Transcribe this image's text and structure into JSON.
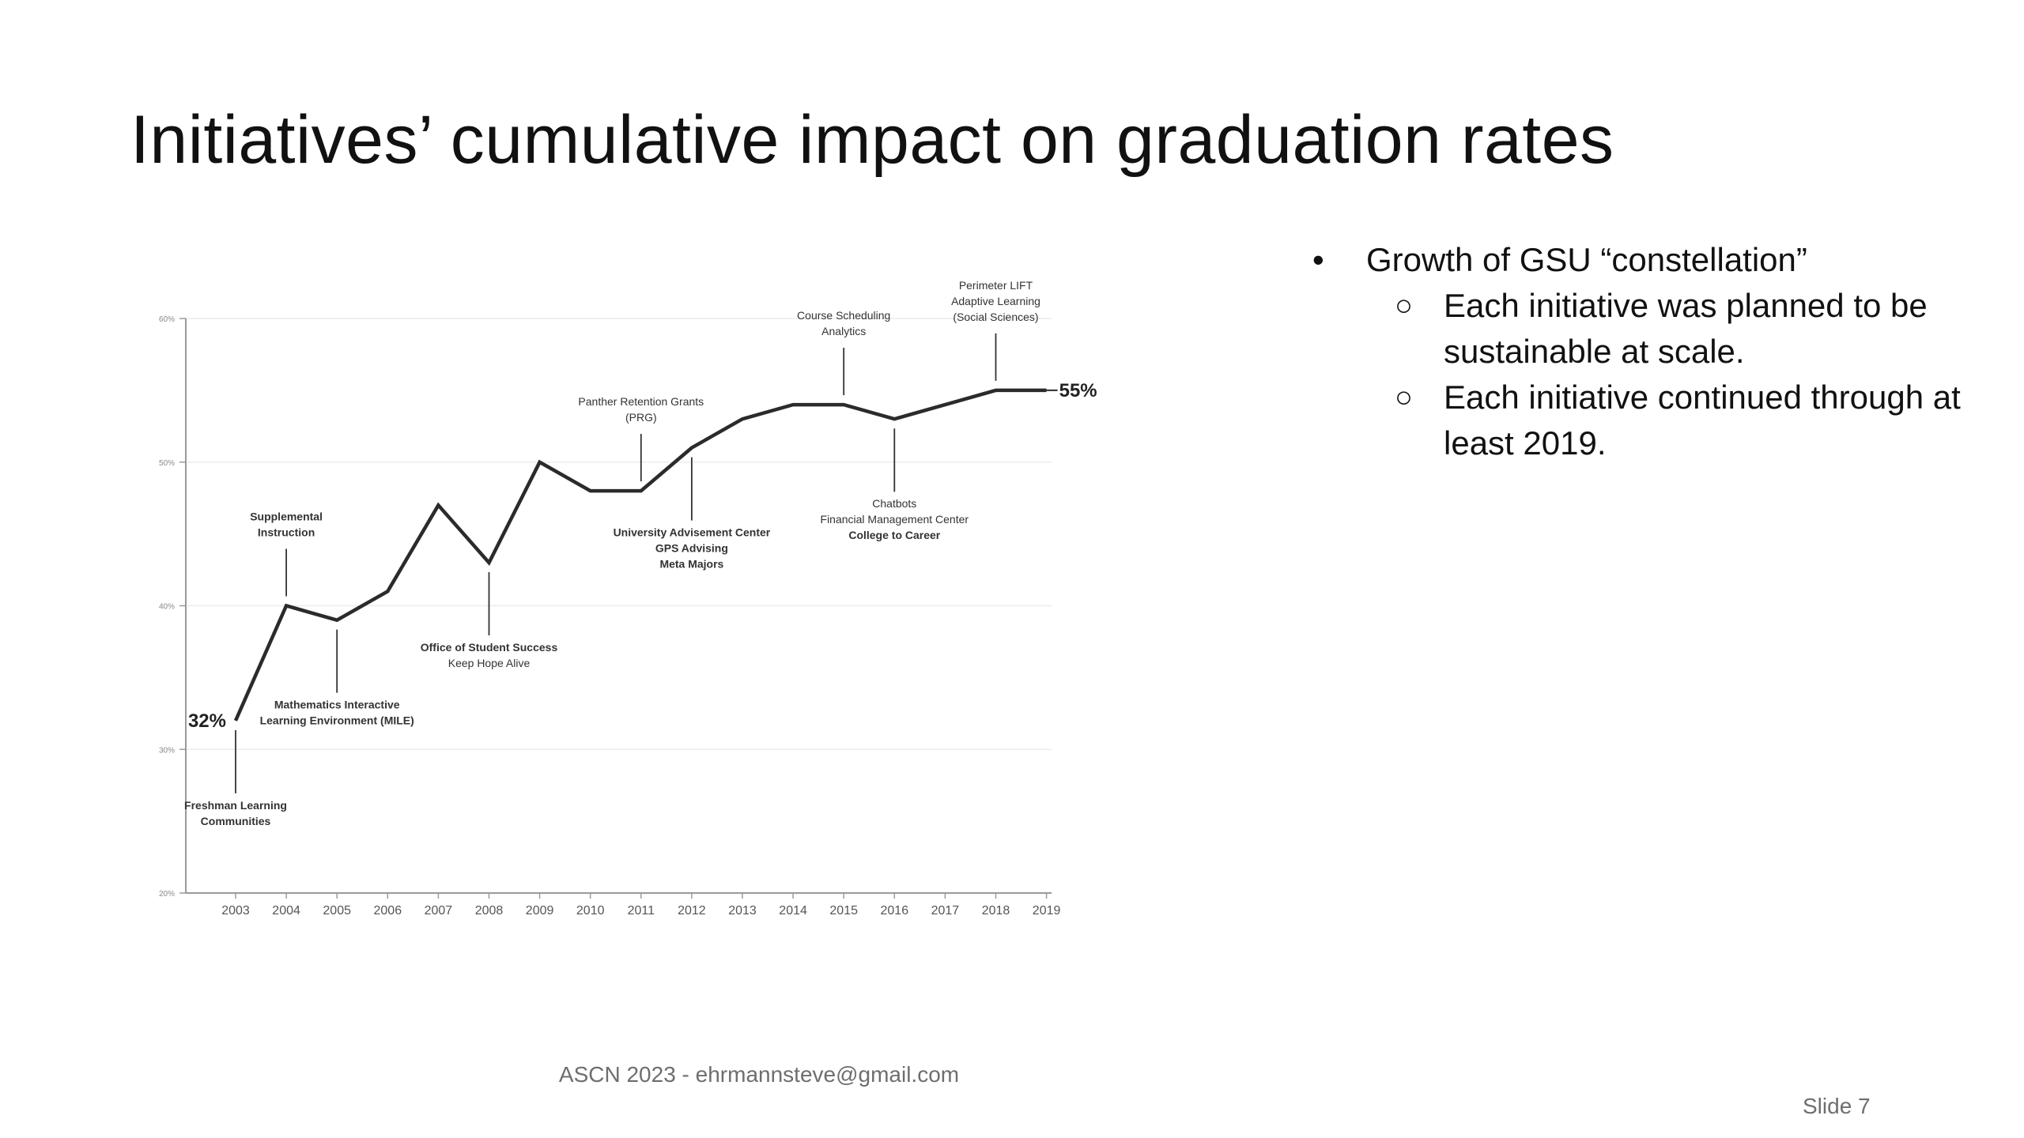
{
  "slide": {
    "title": "Initiatives’ cumulative impact on graduation rates",
    "footer": "ASCN 2023 - ehrmannsteve@gmail.com",
    "slide_number": "Slide 7"
  },
  "bullets": {
    "main": "Growth of GSU “constellation”",
    "sub": [
      "Each initiative was planned to be sustainable at scale.",
      "Each initiative continued through at least 2019."
    ]
  },
  "chart_data": {
    "type": "line",
    "x": [
      "2003",
      "2004",
      "2005",
      "2006",
      "2007",
      "2008",
      "2009",
      "2010",
      "2011",
      "2012",
      "2013",
      "2014",
      "2015",
      "2016",
      "2017",
      "2018",
      "2019"
    ],
    "series": [
      {
        "values": [
          32,
          40,
          39,
          41,
          47,
          43,
          50,
          48,
          48,
          51,
          53,
          54,
          54,
          53,
          54,
          55,
          55
        ]
      }
    ],
    "yticks": [
      "20%",
      "30%",
      "40%",
      "50%",
      "60%"
    ],
    "ylim": [
      20,
      60
    ],
    "grid": true,
    "value_labels": {
      "start": "32%",
      "end": "55%"
    },
    "annotations": [
      {
        "year": "2003",
        "value": 32,
        "position": "below",
        "lines": [
          {
            "text": "Freshman Learning",
            "bold": true
          },
          {
            "text": "Communities",
            "bold": true
          }
        ]
      },
      {
        "year": "2004",
        "value": 40,
        "position": "above",
        "lines": [
          {
            "text": "Supplemental",
            "bold": true
          },
          {
            "text": "Instruction",
            "bold": true
          }
        ]
      },
      {
        "year": "2005",
        "value": 39,
        "position": "below",
        "lines": [
          {
            "text": "Mathematics Interactive",
            "bold": true
          },
          {
            "text": "Learning Environment (MILE)",
            "bold": true
          }
        ]
      },
      {
        "year": "2008",
        "value": 43,
        "position": "below",
        "lines": [
          {
            "text": "Office of Student Success",
            "bold": true
          },
          {
            "text": "Keep Hope Alive",
            "bold": false
          }
        ]
      },
      {
        "year": "2011",
        "value": 48,
        "position": "above",
        "lines": [
          {
            "text": "Panther Retention Grants",
            "bold": false
          },
          {
            "text": "(PRG)",
            "bold": false
          }
        ]
      },
      {
        "year": "2012",
        "value": 51,
        "position": "below",
        "lines": [
          {
            "text": "University Advisement Center",
            "bold": true
          },
          {
            "text": "GPS Advising",
            "bold": true
          },
          {
            "text": "Meta Majors",
            "bold": true
          }
        ]
      },
      {
        "year": "2015",
        "value": 54,
        "position": "above",
        "lines": [
          {
            "text": "Course Scheduling",
            "bold": false
          },
          {
            "text": "Analytics",
            "bold": false
          }
        ]
      },
      {
        "year": "2016",
        "value": 53,
        "position": "below",
        "lines": [
          {
            "text": "Chatbots",
            "bold": false
          },
          {
            "text": "Financial Management Center",
            "bold": false
          },
          {
            "text": "College to Career",
            "bold": true
          }
        ]
      },
      {
        "year": "2018",
        "value": 55,
        "position": "above",
        "lines": [
          {
            "text": "Perimeter LIFT",
            "bold": false
          },
          {
            "text": "Adaptive Learning",
            "bold": false
          },
          {
            "text": "(Social Sciences)",
            "bold": false
          }
        ]
      }
    ],
    "colors": {
      "line": "#2b2b2b",
      "grid": "#ececec",
      "axis": "#9a9a9a",
      "tick_text": "#555555",
      "annotation": "#333333"
    }
  }
}
